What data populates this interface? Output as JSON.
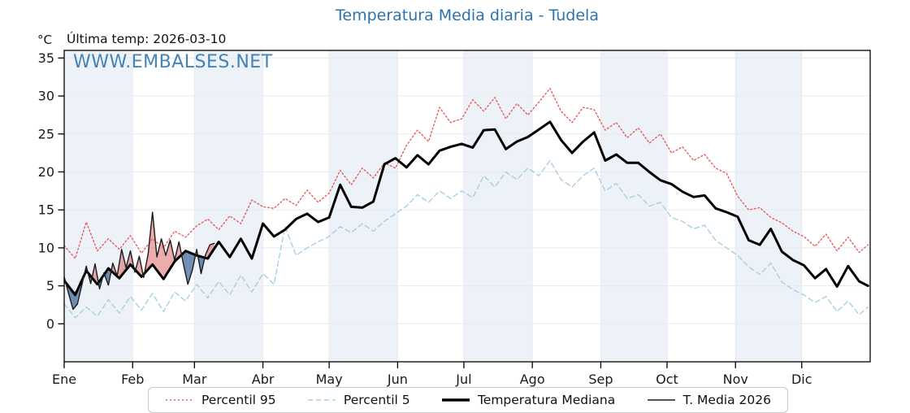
{
  "header": {
    "title": "Temperatura Media diaria - Tudela",
    "units_label": "°C",
    "last_temp_label": "Última temp: 2026-03-10",
    "watermark": "WWW.EMBALSES.NET"
  },
  "legend": {
    "items": [
      {
        "label": "Percentil 95",
        "color": "#e45c5c",
        "width": 1.6,
        "dash": "2 3"
      },
      {
        "label": "Percentil 5",
        "color": "#a7cfe2",
        "width": 1.6,
        "dash": "6 4"
      },
      {
        "label": "Temperatura Mediana",
        "color": "#000000",
        "width": 3.4,
        "dash": ""
      },
      {
        "label": "T. Media 2026",
        "color": "#1b1b1b",
        "width": 1.4,
        "dash": ""
      }
    ]
  },
  "chart_data": {
    "type": "line",
    "title": "Temperatura Media diaria - Tudela",
    "xlabel": "",
    "ylabel": "°C",
    "ylim": [
      -5.0,
      36.0
    ],
    "yticks": [
      0,
      5,
      10,
      15,
      20,
      25,
      30,
      35
    ],
    "grid": true,
    "legend_position": "bottom",
    "months": [
      "Ene",
      "Feb",
      "Mar",
      "Abr",
      "May",
      "Jun",
      "Jul",
      "Ago",
      "Sep",
      "Oct",
      "Nov",
      "Dic"
    ],
    "month_start_days": [
      1,
      32,
      60,
      91,
      121,
      152,
      182,
      213,
      244,
      274,
      305,
      335
    ],
    "days_in_year": 365,
    "shaded_months_indices": [
      0,
      2,
      4,
      6,
      8,
      10
    ],
    "colors": {
      "band": "#edf2f8",
      "grid": "#e9e9f0",
      "axis": "#000000",
      "percentil95": "#e45c5c",
      "percentil5": "#a7cfe2",
      "mediana": "#000000",
      "t2026": "#1b1b1b",
      "fill_above": "rgba(217,68,68,0.45)",
      "fill_below": "rgba(61,104,153,0.75)",
      "title": "#2d72ad",
      "tick_label": "#1a1a1a"
    },
    "sample_days": [
      1,
      6,
      11,
      16,
      21,
      26,
      31,
      36,
      41,
      46,
      51,
      56,
      61,
      66,
      71,
      76,
      81,
      86,
      91,
      96,
      101,
      106,
      111,
      116,
      121,
      126,
      131,
      136,
      141,
      146,
      151,
      156,
      161,
      166,
      171,
      176,
      181,
      186,
      191,
      196,
      201,
      206,
      211,
      216,
      221,
      226,
      231,
      236,
      241,
      246,
      251,
      256,
      261,
      266,
      271,
      276,
      281,
      286,
      291,
      296,
      301,
      306,
      311,
      316,
      321,
      326,
      331,
      336,
      341,
      346,
      351,
      356,
      361,
      365
    ],
    "series": [
      {
        "name": "Percentil 95",
        "style": "dotted",
        "width": 1.4,
        "color_key": "percentil95",
        "values": [
          10.3,
          8.6,
          13.4,
          9.6,
          11.2,
          9.8,
          11.6,
          9.3,
          11.2,
          10.0,
          12.2,
          11.4,
          12.9,
          13.8,
          12.4,
          14.2,
          13.2,
          16.3,
          15.4,
          15.2,
          16.5,
          15.6,
          17.6,
          16.0,
          17.2,
          20.2,
          18.3,
          20.5,
          19.2,
          21.2,
          20.5,
          23.5,
          25.5,
          24.0,
          28.5,
          26.5,
          27.0,
          29.5,
          28.0,
          29.8,
          27.0,
          29.0,
          27.5,
          29.2,
          31.0,
          28.0,
          26.5,
          28.5,
          28.2,
          25.5,
          26.5,
          24.5,
          25.8,
          23.8,
          25.0,
          22.5,
          23.3,
          21.5,
          22.3,
          20.5,
          19.8,
          16.8,
          15.0,
          15.3,
          14.0,
          13.3,
          12.2,
          11.5,
          10.2,
          11.8,
          9.6,
          11.4,
          9.4,
          10.4
        ]
      },
      {
        "name": "Percentil 5",
        "style": "dashed",
        "width": 1.4,
        "color_key": "percentil5",
        "values": [
          2.6,
          0.8,
          2.2,
          1.0,
          3.2,
          1.4,
          3.6,
          1.8,
          4.0,
          1.6,
          4.2,
          3.0,
          5.2,
          3.4,
          5.6,
          3.8,
          6.4,
          4.2,
          6.6,
          5.2,
          12.8,
          9.0,
          10.0,
          10.8,
          11.5,
          12.8,
          12.0,
          13.2,
          12.2,
          13.5,
          14.5,
          15.5,
          17.0,
          16.0,
          17.5,
          16.5,
          17.5,
          16.6,
          19.5,
          18.0,
          20.0,
          19.0,
          20.5,
          19.5,
          21.5,
          19.0,
          18.0,
          19.5,
          20.5,
          17.5,
          18.5,
          16.5,
          17.0,
          15.5,
          16.0,
          14.0,
          13.5,
          12.5,
          13.0,
          11.0,
          10.0,
          9.0,
          7.5,
          6.5,
          8.0,
          5.5,
          4.5,
          3.8,
          2.8,
          3.6,
          1.6,
          3.0,
          1.2,
          2.2
        ]
      },
      {
        "name": "Temperatura Mediana",
        "style": "solid",
        "width": 3.0,
        "color_key": "mediana",
        "values": [
          5.7,
          3.8,
          7.0,
          5.2,
          7.3,
          6.0,
          7.8,
          6.2,
          7.8,
          5.9,
          8.2,
          9.6,
          9.0,
          8.6,
          10.8,
          8.8,
          11.2,
          8.6,
          13.2,
          11.5,
          12.4,
          13.8,
          14.5,
          13.4,
          14.0,
          18.3,
          15.4,
          15.3,
          16.1,
          21.0,
          21.8,
          20.6,
          22.2,
          21.0,
          22.8,
          23.3,
          23.7,
          23.2,
          25.5,
          25.6,
          23.0,
          24.0,
          24.6,
          25.6,
          26.6,
          24.2,
          22.5,
          24.0,
          25.2,
          21.5,
          22.3,
          21.2,
          21.2,
          20.0,
          18.9,
          18.4,
          17.4,
          16.7,
          16.9,
          15.2,
          14.7,
          14.1,
          11.0,
          10.4,
          12.5,
          9.5,
          8.4,
          7.7,
          6.0,
          7.2,
          4.9,
          7.6,
          5.6,
          5.0
        ]
      }
    ],
    "series_2026": {
      "name": "T. Media 2026",
      "style": "solid",
      "width": 1.4,
      "color_key": "t2026",
      "last_day_plotted": 69,
      "days": [
        1,
        3,
        5,
        7,
        9,
        11,
        13,
        15,
        17,
        19,
        21,
        23,
        25,
        27,
        29,
        31,
        33,
        35,
        37,
        39,
        41,
        43,
        45,
        47,
        49,
        51,
        53,
        55,
        57,
        59,
        61,
        63,
        65,
        67,
        69
      ],
      "values": [
        6.2,
        4.0,
        1.9,
        2.6,
        5.1,
        7.6,
        5.3,
        7.9,
        4.6,
        6.7,
        5.1,
        8.0,
        6.3,
        9.8,
        7.4,
        9.6,
        6.8,
        8.9,
        6.1,
        9.2,
        14.7,
        8.8,
        11.2,
        9.0,
        11.0,
        8.4,
        10.8,
        7.8,
        5.2,
        7.0,
        9.8,
        6.6,
        9.1,
        10.4,
        10.6
      ]
    }
  }
}
